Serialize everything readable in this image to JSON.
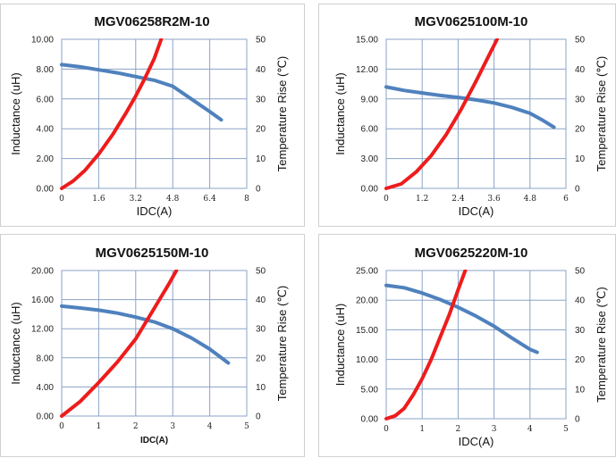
{
  "colors": {
    "inductance": "#4f81bd",
    "temperature": "#ee1c1c",
    "grid": "#8aa3c8"
  },
  "chart_data": [
    {
      "type": "line",
      "title": "MGV06258R2M-10",
      "xlabel": "IDC(A)",
      "ylabel": "Inductance (uH)",
      "y2label": "Temperature Rise (℃)",
      "xlim": [
        0,
        8
      ],
      "ylim": [
        0,
        10
      ],
      "y2lim": [
        0,
        50
      ],
      "xticks": [
        0,
        1.6,
        3.2,
        4.8,
        6.4,
        8
      ],
      "xtick_labels": [
        "0",
        "1.6",
        "3.2",
        "4.8",
        "6.4",
        "8"
      ],
      "yticks": [
        0,
        2,
        4,
        6,
        8,
        10
      ],
      "ytick_labels": [
        "0.00",
        "2.00",
        "4.00",
        "6.00",
        "8.00",
        "10.00"
      ],
      "y2ticks": [
        0,
        10,
        20,
        30,
        40,
        50
      ],
      "y2tick_labels": [
        "0",
        "10",
        "20",
        "30",
        "40",
        "50"
      ],
      "series": [
        {
          "name": "Inductance",
          "axis": "left",
          "x": [
            0,
            0.8,
            1.6,
            2.4,
            3.2,
            4.0,
            4.8,
            5.6,
            6.4,
            6.9
          ],
          "values": [
            8.3,
            8.15,
            7.95,
            7.75,
            7.5,
            7.25,
            6.85,
            6.0,
            5.15,
            4.6
          ]
        },
        {
          "name": "Temperature Rise",
          "axis": "right",
          "x": [
            0,
            0.5,
            1.0,
            1.6,
            2.2,
            2.8,
            3.2,
            3.6,
            4.0,
            4.3
          ],
          "values": [
            0,
            2.5,
            6,
            11.5,
            18,
            25.5,
            31,
            37,
            43.5,
            50
          ]
        }
      ]
    },
    {
      "type": "line",
      "title": "MGV0625100M-10",
      "xlabel": "IDC(A)",
      "ylabel": "Inductance (uH)",
      "y2label": "Temperature Rise (℃)",
      "xlim": [
        0,
        6
      ],
      "ylim": [
        0,
        15
      ],
      "y2lim": [
        0,
        50
      ],
      "xticks": [
        0,
        1.2,
        2.4,
        3.6,
        4.8,
        6
      ],
      "xtick_labels": [
        "0",
        "1.2",
        "2.4",
        "3.6",
        "4.8",
        "6"
      ],
      "yticks": [
        0,
        3,
        6,
        9,
        12,
        15
      ],
      "ytick_labels": [
        "0.00",
        "3.00",
        "6.00",
        "9.00",
        "12.00",
        "15.00"
      ],
      "y2ticks": [
        0,
        10,
        20,
        30,
        40,
        50
      ],
      "y2tick_labels": [
        "0",
        "10",
        "20",
        "30",
        "40",
        "50"
      ],
      "series": [
        {
          "name": "Inductance",
          "axis": "left",
          "x": [
            0,
            0.6,
            1.2,
            1.8,
            2.4,
            3.0,
            3.6,
            4.2,
            4.8,
            5.2,
            5.6
          ],
          "values": [
            10.2,
            9.85,
            9.6,
            9.35,
            9.15,
            8.9,
            8.6,
            8.15,
            7.55,
            6.9,
            6.15
          ]
        },
        {
          "name": "Temperature Rise",
          "axis": "right",
          "x": [
            0,
            0.5,
            1.0,
            1.5,
            2.0,
            2.5,
            3.0,
            3.4,
            3.7
          ],
          "values": [
            0,
            1.5,
            5.5,
            11,
            18,
            26.5,
            36,
            44,
            50
          ]
        }
      ]
    },
    {
      "type": "line",
      "title": "MGV0625150M-10",
      "xlabel": "IDC(A)",
      "ylabel": "Inductance (uH)",
      "y2label": "Temperature Rise (℃)",
      "xlim": [
        0,
        5
      ],
      "ylim": [
        0,
        20
      ],
      "y2lim": [
        0,
        50
      ],
      "xticks": [
        0,
        1,
        2,
        3,
        4,
        5
      ],
      "xtick_labels": [
        "0",
        "1",
        "2",
        "3",
        "4",
        "5"
      ],
      "yticks": [
        0,
        4,
        8,
        12,
        16,
        20
      ],
      "ytick_labels": [
        "0.00",
        "4.00",
        "8.00",
        "12.00",
        "16.00",
        "20.00"
      ],
      "y2ticks": [
        0,
        10,
        20,
        30,
        40,
        50
      ],
      "y2tick_labels": [
        "0",
        "10",
        "20",
        "30",
        "40",
        "50"
      ],
      "series": [
        {
          "name": "Inductance",
          "axis": "left",
          "x": [
            0,
            0.5,
            1.0,
            1.5,
            2.0,
            2.5,
            3.0,
            3.5,
            4.0,
            4.5
          ],
          "values": [
            15.1,
            14.85,
            14.55,
            14.15,
            13.6,
            12.95,
            12.0,
            10.75,
            9.2,
            7.3
          ]
        },
        {
          "name": "Temperature Rise",
          "axis": "right",
          "x": [
            0,
            0.5,
            1.0,
            1.5,
            2.0,
            2.5,
            2.9,
            3.1
          ],
          "values": [
            0,
            5,
            11.5,
            18.5,
            26.5,
            37,
            45.5,
            50
          ]
        }
      ]
    },
    {
      "type": "line",
      "title": "MGV0625220M-10",
      "xlabel": "IDC(A)",
      "ylabel": "Inductance (uH)",
      "y2label": "Temperature Rise (℃)",
      "xlim": [
        0,
        5
      ],
      "ylim": [
        0,
        25
      ],
      "y2lim": [
        0,
        50
      ],
      "xticks": [
        0,
        1,
        2,
        3,
        4,
        5
      ],
      "xtick_labels": [
        "0",
        "1",
        "2",
        "3",
        "4",
        "5"
      ],
      "yticks": [
        0,
        5,
        10,
        15,
        20,
        25
      ],
      "ytick_labels": [
        "0.00",
        "5.00",
        "10.00",
        "15.00",
        "20.00",
        "25.00"
      ],
      "y2ticks": [
        0,
        10,
        20,
        30,
        40,
        50
      ],
      "y2tick_labels": [
        "0",
        "10",
        "20",
        "30",
        "40",
        "50"
      ],
      "series": [
        {
          "name": "Inductance",
          "axis": "left",
          "x": [
            0,
            0.5,
            1.0,
            1.5,
            2.0,
            2.5,
            3.0,
            3.5,
            4.0,
            4.2
          ],
          "values": [
            22.5,
            22.1,
            21.2,
            20.1,
            18.8,
            17.3,
            15.6,
            13.6,
            11.7,
            11.2
          ]
        },
        {
          "name": "Temperature Rise",
          "axis": "right",
          "x": [
            0,
            0.25,
            0.5,
            0.75,
            1.0,
            1.25,
            1.5,
            1.75,
            2.0,
            2.2
          ],
          "values": [
            0,
            1,
            3.5,
            8,
            13.5,
            20,
            27.5,
            35,
            43.5,
            50
          ]
        }
      ]
    }
  ]
}
